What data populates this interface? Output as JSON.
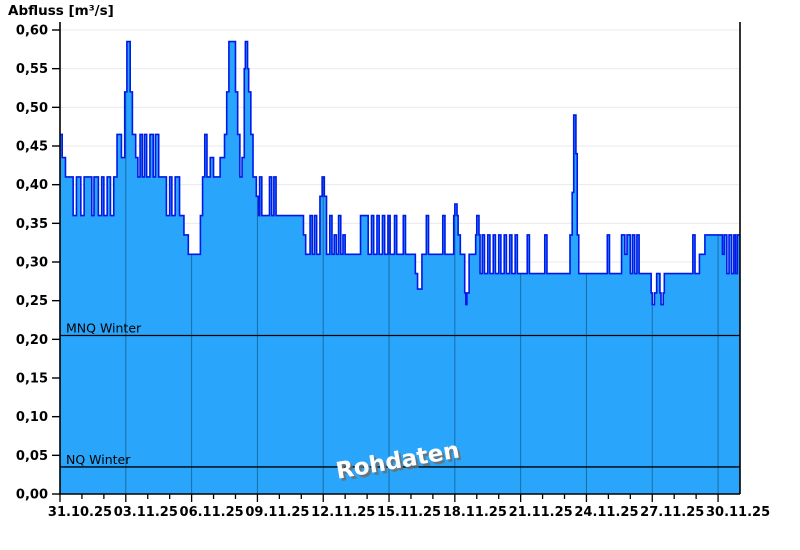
{
  "title": "Abfluss [m³/s]",
  "watermark": "Rohdaten",
  "colors": {
    "area_fill": "#29A6FB",
    "area_stroke": "#0018E8",
    "vgrid_over_area": "#1A6BA5",
    "hgrid": "#EAEAEA",
    "axis": "#000000",
    "reference_line": "#000000",
    "label_text": "#000000",
    "watermark_fill": "#FFFFFF",
    "watermark_shadow": "#6E6E6E"
  },
  "chart_data": {
    "type": "area",
    "subtype": "step-area-hydrograph",
    "title": "Abfluss [m³/s]",
    "ylabel": "Abfluss [m³/s]",
    "xlabel": "",
    "ylim": [
      0.0,
      0.61
    ],
    "x_start_label": "31.10.25",
    "x_end_label": "30.11.25",
    "x_total_days": 31,
    "grid": {
      "horizontal": true,
      "vertical": true,
      "vertical_visible_only_over_area": true
    },
    "legend_position": "none",
    "y_ticks": [
      {
        "value": 0.0,
        "label": "0,00"
      },
      {
        "value": 0.05,
        "label": "0,05"
      },
      {
        "value": 0.1,
        "label": "0,10"
      },
      {
        "value": 0.15,
        "label": "0,15"
      },
      {
        "value": 0.2,
        "label": "0,20"
      },
      {
        "value": 0.25,
        "label": "0,25"
      },
      {
        "value": 0.3,
        "label": "0,30"
      },
      {
        "value": 0.35,
        "label": "0,35"
      },
      {
        "value": 0.4,
        "label": "0,40"
      },
      {
        "value": 0.45,
        "label": "0,45"
      },
      {
        "value": 0.5,
        "label": "0,50"
      },
      {
        "value": 0.55,
        "label": "0,55"
      },
      {
        "value": 0.6,
        "label": "0,60"
      }
    ],
    "x_ticks": [
      {
        "day": 0,
        "label": "31.10.25"
      },
      {
        "day": 3,
        "label": "03.11.25"
      },
      {
        "day": 6,
        "label": "06.11.25"
      },
      {
        "day": 9,
        "label": "09.11.25"
      },
      {
        "day": 12,
        "label": "12.11.25"
      },
      {
        "day": 15,
        "label": "15.11.25"
      },
      {
        "day": 18,
        "label": "18.11.25"
      },
      {
        "day": 21,
        "label": "21.11.25"
      },
      {
        "day": 24,
        "label": "24.11.25"
      },
      {
        "day": 27,
        "label": "27.11.25"
      },
      {
        "day": 30,
        "label": "30.11.25"
      }
    ],
    "x_minor_tick_step_days": 1,
    "reference_lines": [
      {
        "label": "MNQ Winter",
        "value": 0.205
      },
      {
        "label": "NQ Winter",
        "value": 0.035
      }
    ],
    "watermark": "Rohdaten",
    "series": [
      {
        "name": "Abfluss Rohdaten",
        "unit": "m³/s",
        "points_day_value": [
          [
            0,
            0.465
          ],
          [
            0.1,
            0.435
          ],
          [
            0.25,
            0.41
          ],
          [
            0.6,
            0.36
          ],
          [
            0.75,
            0.41
          ],
          [
            0.95,
            0.36
          ],
          [
            1.1,
            0.41
          ],
          [
            1.45,
            0.36
          ],
          [
            1.55,
            0.41
          ],
          [
            1.75,
            0.36
          ],
          [
            1.9,
            0.41
          ],
          [
            2.0,
            0.36
          ],
          [
            2.15,
            0.41
          ],
          [
            2.3,
            0.36
          ],
          [
            2.45,
            0.41
          ],
          [
            2.6,
            0.465
          ],
          [
            2.8,
            0.435
          ],
          [
            2.95,
            0.52
          ],
          [
            3.05,
            0.585
          ],
          [
            3.2,
            0.52
          ],
          [
            3.3,
            0.465
          ],
          [
            3.45,
            0.435
          ],
          [
            3.55,
            0.41
          ],
          [
            3.65,
            0.465
          ],
          [
            3.75,
            0.41
          ],
          [
            3.85,
            0.465
          ],
          [
            3.95,
            0.41
          ],
          [
            4.1,
            0.465
          ],
          [
            4.25,
            0.41
          ],
          [
            4.35,
            0.465
          ],
          [
            4.5,
            0.41
          ],
          [
            4.85,
            0.36
          ],
          [
            5.0,
            0.41
          ],
          [
            5.1,
            0.36
          ],
          [
            5.25,
            0.41
          ],
          [
            5.45,
            0.36
          ],
          [
            5.65,
            0.335
          ],
          [
            5.85,
            0.31
          ],
          [
            6.4,
            0.36
          ],
          [
            6.5,
            0.41
          ],
          [
            6.6,
            0.465
          ],
          [
            6.7,
            0.41
          ],
          [
            6.85,
            0.435
          ],
          [
            7.0,
            0.41
          ],
          [
            7.3,
            0.435
          ],
          [
            7.5,
            0.465
          ],
          [
            7.6,
            0.52
          ],
          [
            7.7,
            0.585
          ],
          [
            8.0,
            0.52
          ],
          [
            8.1,
            0.465
          ],
          [
            8.2,
            0.41
          ],
          [
            8.3,
            0.435
          ],
          [
            8.4,
            0.55
          ],
          [
            8.45,
            0.585
          ],
          [
            8.55,
            0.55
          ],
          [
            8.6,
            0.52
          ],
          [
            8.7,
            0.465
          ],
          [
            8.8,
            0.41
          ],
          [
            8.95,
            0.385
          ],
          [
            9.05,
            0.36
          ],
          [
            9.1,
            0.41
          ],
          [
            9.2,
            0.36
          ],
          [
            9.55,
            0.41
          ],
          [
            9.65,
            0.36
          ],
          [
            9.75,
            0.41
          ],
          [
            9.85,
            0.36
          ],
          [
            11.1,
            0.335
          ],
          [
            11.2,
            0.31
          ],
          [
            11.4,
            0.36
          ],
          [
            11.5,
            0.31
          ],
          [
            11.6,
            0.36
          ],
          [
            11.7,
            0.31
          ],
          [
            11.85,
            0.385
          ],
          [
            11.95,
            0.41
          ],
          [
            12.05,
            0.385
          ],
          [
            12.15,
            0.31
          ],
          [
            12.3,
            0.36
          ],
          [
            12.4,
            0.31
          ],
          [
            12.5,
            0.335
          ],
          [
            12.6,
            0.31
          ],
          [
            12.7,
            0.36
          ],
          [
            12.8,
            0.31
          ],
          [
            12.9,
            0.335
          ],
          [
            13.0,
            0.31
          ],
          [
            13.7,
            0.36
          ],
          [
            14.05,
            0.31
          ],
          [
            14.2,
            0.36
          ],
          [
            14.3,
            0.31
          ],
          [
            14.45,
            0.36
          ],
          [
            14.55,
            0.31
          ],
          [
            14.7,
            0.36
          ],
          [
            14.8,
            0.31
          ],
          [
            14.95,
            0.36
          ],
          [
            15.05,
            0.31
          ],
          [
            15.25,
            0.36
          ],
          [
            15.35,
            0.31
          ],
          [
            15.65,
            0.36
          ],
          [
            15.75,
            0.31
          ],
          [
            16.2,
            0.285
          ],
          [
            16.3,
            0.265
          ],
          [
            16.5,
            0.31
          ],
          [
            16.7,
            0.36
          ],
          [
            16.8,
            0.31
          ],
          [
            17.45,
            0.36
          ],
          [
            17.55,
            0.31
          ],
          [
            17.95,
            0.36
          ],
          [
            18.0,
            0.375
          ],
          [
            18.1,
            0.36
          ],
          [
            18.15,
            0.335
          ],
          [
            18.25,
            0.31
          ],
          [
            18.45,
            0.26
          ],
          [
            18.5,
            0.245
          ],
          [
            18.55,
            0.26
          ],
          [
            18.65,
            0.31
          ],
          [
            18.95,
            0.335
          ],
          [
            19.0,
            0.36
          ],
          [
            19.1,
            0.335
          ],
          [
            19.15,
            0.285
          ],
          [
            19.25,
            0.335
          ],
          [
            19.35,
            0.285
          ],
          [
            19.5,
            0.335
          ],
          [
            19.6,
            0.285
          ],
          [
            19.75,
            0.335
          ],
          [
            19.85,
            0.285
          ],
          [
            20.0,
            0.335
          ],
          [
            20.1,
            0.285
          ],
          [
            20.25,
            0.335
          ],
          [
            20.35,
            0.285
          ],
          [
            20.5,
            0.335
          ],
          [
            20.6,
            0.285
          ],
          [
            20.75,
            0.335
          ],
          [
            20.85,
            0.285
          ],
          [
            21.3,
            0.335
          ],
          [
            21.4,
            0.285
          ],
          [
            22.1,
            0.335
          ],
          [
            22.2,
            0.285
          ],
          [
            23.25,
            0.335
          ],
          [
            23.35,
            0.39
          ],
          [
            23.42,
            0.49
          ],
          [
            23.52,
            0.44
          ],
          [
            23.58,
            0.335
          ],
          [
            23.65,
            0.285
          ],
          [
            24.95,
            0.335
          ],
          [
            25.05,
            0.285
          ],
          [
            25.6,
            0.335
          ],
          [
            25.75,
            0.31
          ],
          [
            25.85,
            0.335
          ],
          [
            26.0,
            0.285
          ],
          [
            26.1,
            0.335
          ],
          [
            26.2,
            0.285
          ],
          [
            26.3,
            0.335
          ],
          [
            26.4,
            0.285
          ],
          [
            26.95,
            0.26
          ],
          [
            27.0,
            0.245
          ],
          [
            27.1,
            0.26
          ],
          [
            27.2,
            0.285
          ],
          [
            27.35,
            0.26
          ],
          [
            27.4,
            0.245
          ],
          [
            27.5,
            0.26
          ],
          [
            27.55,
            0.285
          ],
          [
            28.85,
            0.335
          ],
          [
            28.95,
            0.285
          ],
          [
            29.15,
            0.31
          ],
          [
            29.4,
            0.335
          ],
          [
            30.2,
            0.31
          ],
          [
            30.28,
            0.335
          ],
          [
            30.4,
            0.285
          ],
          [
            30.5,
            0.335
          ],
          [
            30.62,
            0.285
          ],
          [
            30.72,
            0.335
          ],
          [
            30.8,
            0.285
          ],
          [
            30.88,
            0.335
          ],
          [
            31.0,
            0.335
          ]
        ]
      }
    ]
  }
}
